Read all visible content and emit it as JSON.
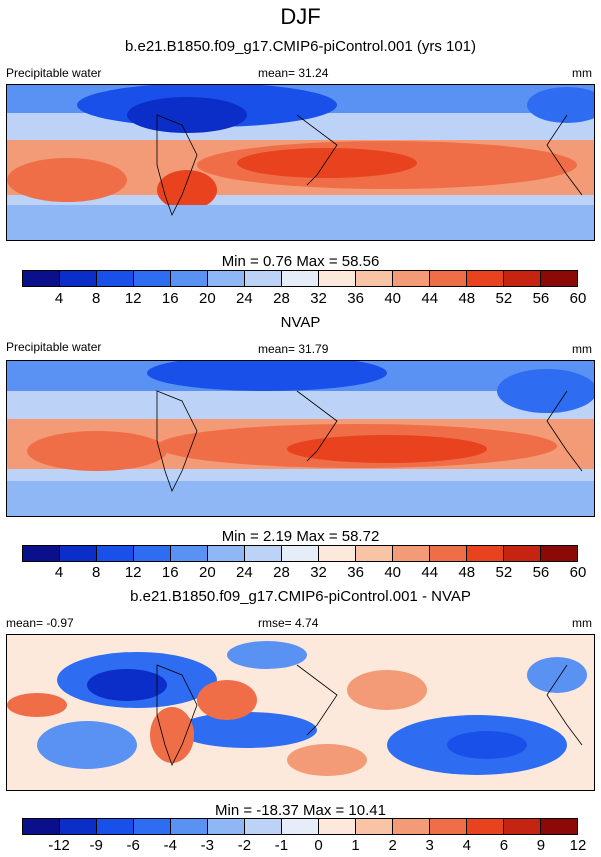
{
  "title": "DJF",
  "panels": [
    {
      "heading": "b.e21.B1850.f09_g17.CMIP6-piControl.001 (yrs 101)",
      "left_label": "Precipitable water",
      "center_label": "mean=  31.24",
      "right_label": "mm",
      "minmax": "Min =   0.76 Max =  58.56",
      "colorbar": [
        "#0a0f8c",
        "#0a2ec7",
        "#1a50ea",
        "#2e6cf2",
        "#5a92f4",
        "#8fb6f5",
        "#bcd3f7",
        "#e6edf9",
        "#fde9dc",
        "#f9c3a5",
        "#f39a76",
        "#ef6e47",
        "#e8431e",
        "#c52412",
        "#8b0a07"
      ],
      "ticks": [
        "4",
        "8",
        "12",
        "16",
        "20",
        "24",
        "28",
        "32",
        "36",
        "40",
        "44",
        "48",
        "52",
        "56",
        "60"
      ]
    },
    {
      "heading": "NVAP",
      "left_label": "Precipitable water",
      "center_label": "mean=  31.79",
      "right_label": "mm",
      "minmax": "Min =   2.19 Max =  58.72",
      "colorbar": [
        "#0a0f8c",
        "#0a2ec7",
        "#1a50ea",
        "#2e6cf2",
        "#5a92f4",
        "#8fb6f5",
        "#bcd3f7",
        "#e6edf9",
        "#fde9dc",
        "#f9c3a5",
        "#f39a76",
        "#ef6e47",
        "#e8431e",
        "#c52412",
        "#8b0a07"
      ],
      "ticks": [
        "4",
        "8",
        "12",
        "16",
        "20",
        "24",
        "28",
        "32",
        "36",
        "40",
        "44",
        "48",
        "52",
        "56",
        "60"
      ]
    },
    {
      "heading": "b.e21.B1850.f09_g17.CMIP6-piControl.001 - NVAP",
      "left_label": "mean=  -0.97",
      "center_label": "rmse=   4.74",
      "right_label": "mm",
      "minmax": "Min = -18.37 Max =  10.41",
      "colorbar": [
        "#0a0f8c",
        "#0a2ec7",
        "#1a50ea",
        "#2e6cf2",
        "#5a92f4",
        "#8fb6f5",
        "#bcd3f7",
        "#e6edf9",
        "#fde9dc",
        "#f9c3a5",
        "#f39a76",
        "#ef6e47",
        "#e8431e",
        "#c52412",
        "#8b0a07"
      ],
      "ticks": [
        "-12",
        "-9",
        "-6",
        "-4",
        "-3",
        "-2",
        "-1",
        "0",
        "1",
        "2",
        "3",
        "4",
        "6",
        "9",
        "12"
      ]
    }
  ]
}
